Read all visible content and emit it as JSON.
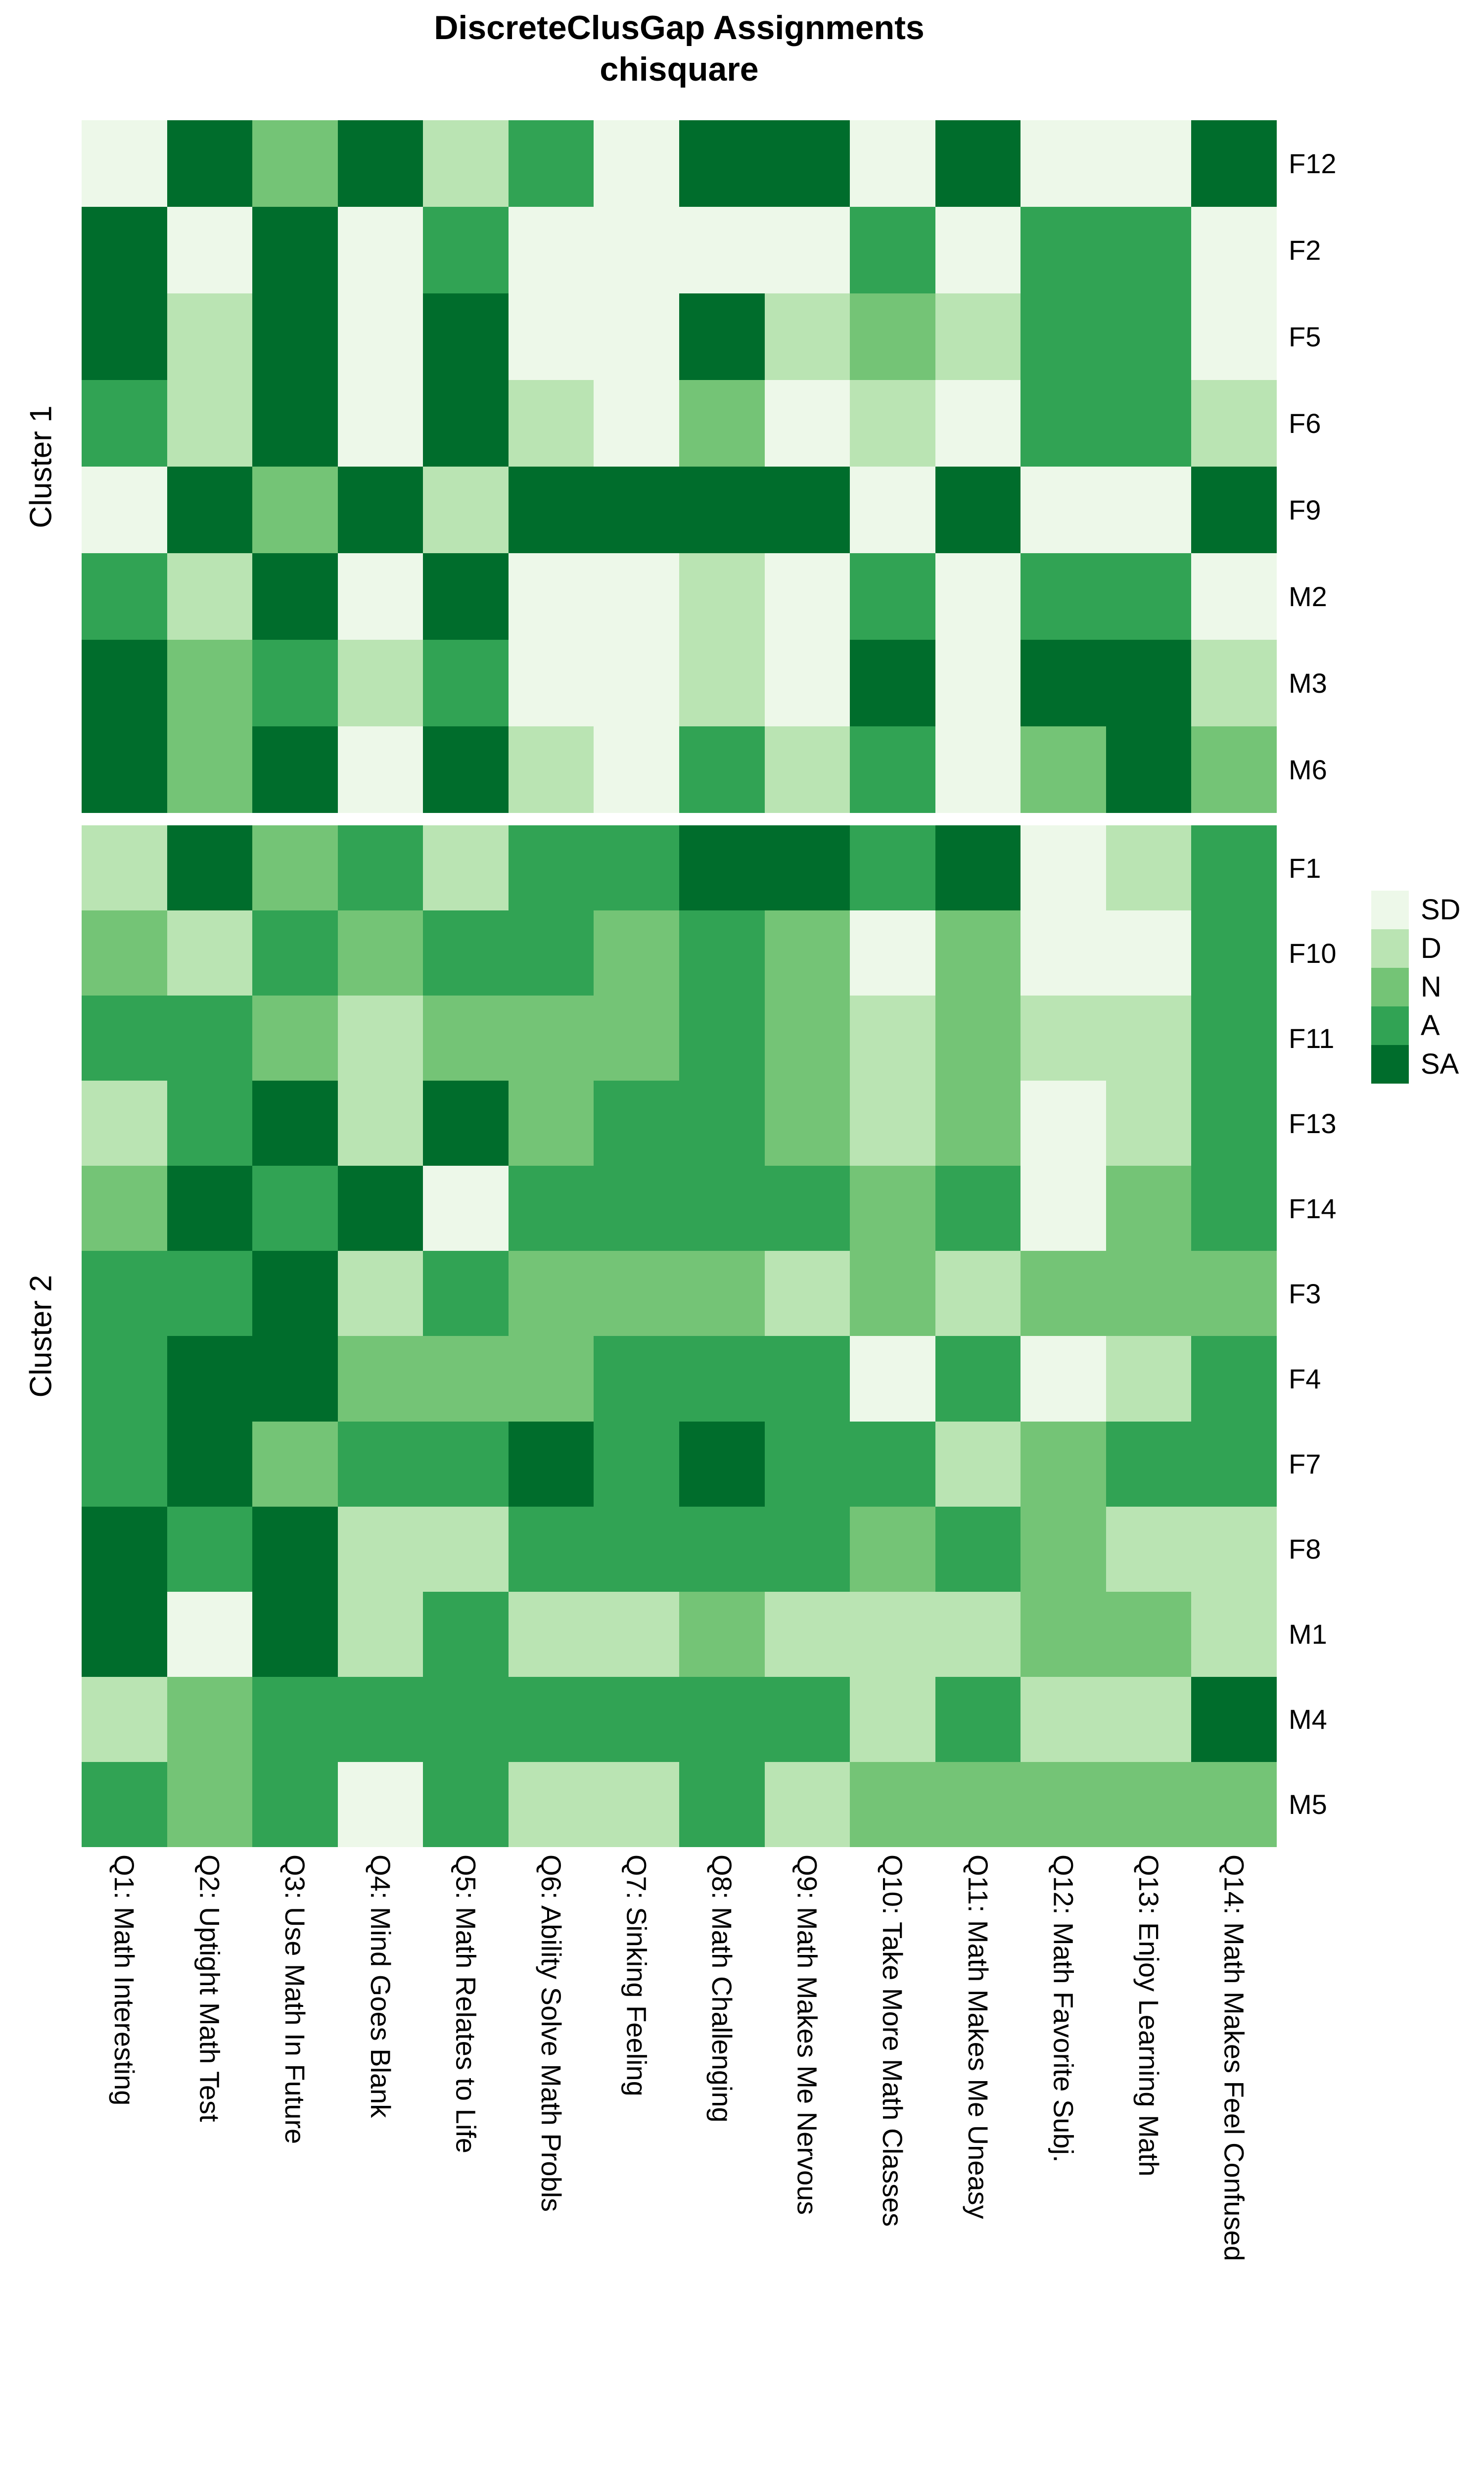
{
  "chart_data": {
    "type": "heatmap",
    "title_line1": "DiscreteClusGap Assignments",
    "title_line2": "chisquare",
    "grid": "off",
    "legend_position": "right",
    "colors": {
      "SD": "#edf8e9",
      "D": "#bae4b3",
      "N": "#74c476",
      "A": "#31a354",
      "SA": "#006d2c"
    },
    "legend_entries": [
      {
        "label": "SD",
        "color": "#edf8e9"
      },
      {
        "label": "D",
        "color": "#bae4b3"
      },
      {
        "label": "N",
        "color": "#74c476"
      },
      {
        "label": "A",
        "color": "#31a354"
      },
      {
        "label": "SA",
        "color": "#006d2c"
      }
    ],
    "columns": [
      "Q1: Math Interesting",
      "Q2: Uptight Math Test",
      "Q3: Use Math In Future",
      "Q4: Mind Goes Blank",
      "Q5: Math Relates to Life",
      "Q6: Ability Solve Math Probls",
      "Q7: Sinking Feeling",
      "Q8: Math Challenging",
      "Q9: Math Makes Me Nervous",
      "Q10: Take More Math Classes",
      "Q11: Math Makes Me Uneasy",
      "Q12: Math Favorite Subj.",
      "Q13: Enjoy Learning Math",
      "Q14: Math Makes Feel Confused"
    ],
    "clusters": [
      {
        "name": "Cluster 1",
        "rows": [
          {
            "label": "F12",
            "values": [
              "SD",
              "SA",
              "N",
              "SA",
              "D",
              "A",
              "SD",
              "SA",
              "SA",
              "SD",
              "SA",
              "SD",
              "SD",
              "SA"
            ]
          },
          {
            "label": "F2",
            "values": [
              "SA",
              "SD",
              "SA",
              "SD",
              "A",
              "SD",
              "SD",
              "SD",
              "SD",
              "A",
              "SD",
              "A",
              "A",
              "SD"
            ]
          },
          {
            "label": "F5",
            "values": [
              "SA",
              "D",
              "SA",
              "SD",
              "SA",
              "SD",
              "SD",
              "SA",
              "D",
              "N",
              "D",
              "A",
              "A",
              "SD"
            ]
          },
          {
            "label": "F6",
            "values": [
              "A",
              "D",
              "SA",
              "SD",
              "SA",
              "D",
              "SD",
              "N",
              "SD",
              "D",
              "SD",
              "A",
              "A",
              "D"
            ]
          },
          {
            "label": "F9",
            "values": [
              "SD",
              "SA",
              "N",
              "SA",
              "D",
              "SA",
              "SA",
              "SA",
              "SA",
              "SD",
              "SA",
              "SD",
              "SD",
              "SA"
            ]
          },
          {
            "label": "M2",
            "values": [
              "A",
              "D",
              "SA",
              "SD",
              "SA",
              "SD",
              "SD",
              "D",
              "SD",
              "A",
              "SD",
              "A",
              "A",
              "SD"
            ]
          },
          {
            "label": "M3",
            "values": [
              "SA",
              "N",
              "A",
              "D",
              "A",
              "SD",
              "SD",
              "D",
              "SD",
              "SA",
              "SD",
              "SA",
              "SA",
              "D"
            ]
          },
          {
            "label": "M6",
            "values": [
              "SA",
              "N",
              "SA",
              "SD",
              "SA",
              "D",
              "SD",
              "A",
              "D",
              "A",
              "SD",
              "N",
              "SA",
              "N"
            ]
          }
        ]
      },
      {
        "name": "Cluster 2",
        "rows": [
          {
            "label": "F1",
            "values": [
              "D",
              "SA",
              "N",
              "A",
              "D",
              "A",
              "A",
              "SA",
              "SA",
              "A",
              "SA",
              "SD",
              "D",
              "A"
            ]
          },
          {
            "label": "F10",
            "values": [
              "N",
              "D",
              "A",
              "N",
              "A",
              "A",
              "N",
              "A",
              "N",
              "SD",
              "N",
              "SD",
              "SD",
              "A"
            ]
          },
          {
            "label": "F11",
            "values": [
              "A",
              "A",
              "N",
              "D",
              "N",
              "N",
              "N",
              "A",
              "N",
              "D",
              "N",
              "D",
              "D",
              "A"
            ]
          },
          {
            "label": "F13",
            "values": [
              "D",
              "A",
              "SA",
              "D",
              "SA",
              "N",
              "A",
              "A",
              "N",
              "D",
              "N",
              "SD",
              "D",
              "A"
            ]
          },
          {
            "label": "F14",
            "values": [
              "N",
              "SA",
              "A",
              "SA",
              "SD",
              "A",
              "A",
              "A",
              "A",
              "N",
              "A",
              "SD",
              "N",
              "A"
            ]
          },
          {
            "label": "F3",
            "values": [
              "A",
              "A",
              "SA",
              "D",
              "A",
              "N",
              "N",
              "N",
              "D",
              "N",
              "D",
              "N",
              "N",
              "N"
            ]
          },
          {
            "label": "F4",
            "values": [
              "A",
              "SA",
              "SA",
              "N",
              "N",
              "N",
              "A",
              "A",
              "A",
              "SD",
              "A",
              "SD",
              "D",
              "A"
            ]
          },
          {
            "label": "F7",
            "values": [
              "A",
              "SA",
              "N",
              "A",
              "A",
              "SA",
              "A",
              "SA",
              "A",
              "A",
              "D",
              "N",
              "A",
              "A"
            ]
          },
          {
            "label": "F8",
            "values": [
              "SA",
              "A",
              "SA",
              "D",
              "D",
              "A",
              "A",
              "A",
              "A",
              "N",
              "A",
              "N",
              "D",
              "D"
            ]
          },
          {
            "label": "M1",
            "values": [
              "SA",
              "SD",
              "SA",
              "D",
              "A",
              "D",
              "D",
              "N",
              "D",
              "D",
              "D",
              "N",
              "N",
              "D"
            ]
          },
          {
            "label": "M4",
            "values": [
              "D",
              "N",
              "A",
              "A",
              "A",
              "A",
              "A",
              "A",
              "A",
              "D",
              "A",
              "D",
              "D",
              "SA"
            ]
          },
          {
            "label": "M5",
            "values": [
              "A",
              "N",
              "A",
              "SD",
              "A",
              "D",
              "D",
              "A",
              "D",
              "N",
              "N",
              "N",
              "N",
              "N"
            ]
          }
        ]
      }
    ]
  }
}
